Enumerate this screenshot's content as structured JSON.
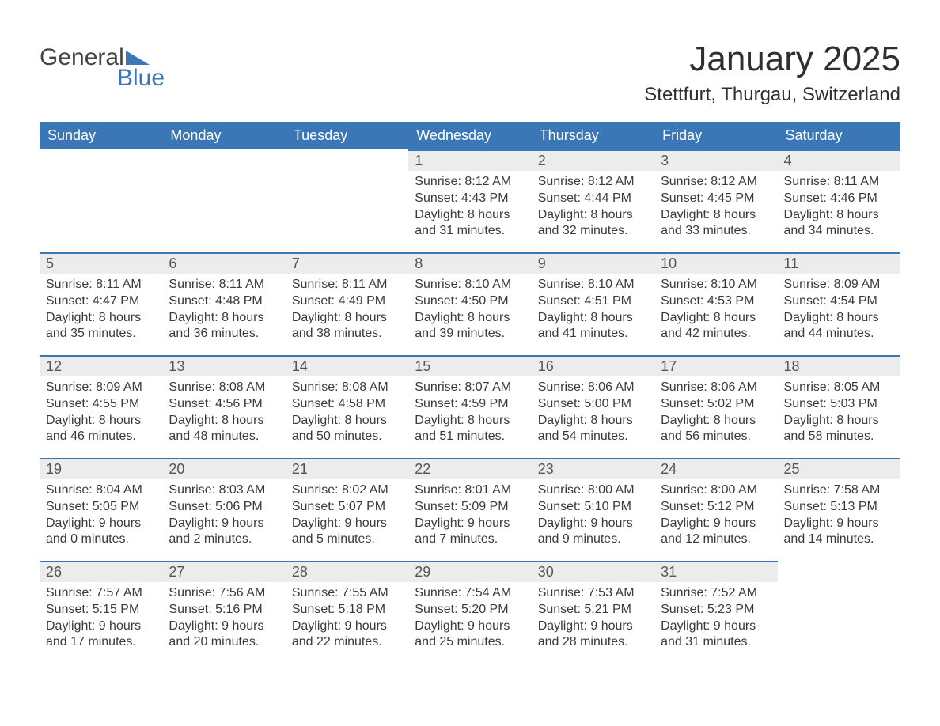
{
  "logo": {
    "general": "General",
    "blue": "Blue"
  },
  "title": "January 2025",
  "subtitle": "Stettfurt, Thurgau, Switzerland",
  "colors": {
    "header_bg": "#3b77b7",
    "header_text": "#ffffff",
    "daynum_bg": "#ececec",
    "daynum_border": "#3b77b7",
    "body_text": "#3a3a3a",
    "logo_general": "#454545",
    "logo_blue": "#3b77b7",
    "page_bg": "#ffffff"
  },
  "typography": {
    "title_fontsize": 44,
    "subtitle_fontsize": 24,
    "header_fontsize": 18,
    "daynum_fontsize": 18,
    "body_fontsize": 16,
    "logo_fontsize": 30
  },
  "weekdays": [
    "Sunday",
    "Monday",
    "Tuesday",
    "Wednesday",
    "Thursday",
    "Friday",
    "Saturday"
  ],
  "weeks": [
    [
      null,
      null,
      null,
      {
        "day": "1",
        "sunrise": "Sunrise: 8:12 AM",
        "sunset": "Sunset: 4:43 PM",
        "daylight1": "Daylight: 8 hours",
        "daylight2": "and 31 minutes."
      },
      {
        "day": "2",
        "sunrise": "Sunrise: 8:12 AM",
        "sunset": "Sunset: 4:44 PM",
        "daylight1": "Daylight: 8 hours",
        "daylight2": "and 32 minutes."
      },
      {
        "day": "3",
        "sunrise": "Sunrise: 8:12 AM",
        "sunset": "Sunset: 4:45 PM",
        "daylight1": "Daylight: 8 hours",
        "daylight2": "and 33 minutes."
      },
      {
        "day": "4",
        "sunrise": "Sunrise: 8:11 AM",
        "sunset": "Sunset: 4:46 PM",
        "daylight1": "Daylight: 8 hours",
        "daylight2": "and 34 minutes."
      }
    ],
    [
      {
        "day": "5",
        "sunrise": "Sunrise: 8:11 AM",
        "sunset": "Sunset: 4:47 PM",
        "daylight1": "Daylight: 8 hours",
        "daylight2": "and 35 minutes."
      },
      {
        "day": "6",
        "sunrise": "Sunrise: 8:11 AM",
        "sunset": "Sunset: 4:48 PM",
        "daylight1": "Daylight: 8 hours",
        "daylight2": "and 36 minutes."
      },
      {
        "day": "7",
        "sunrise": "Sunrise: 8:11 AM",
        "sunset": "Sunset: 4:49 PM",
        "daylight1": "Daylight: 8 hours",
        "daylight2": "and 38 minutes."
      },
      {
        "day": "8",
        "sunrise": "Sunrise: 8:10 AM",
        "sunset": "Sunset: 4:50 PM",
        "daylight1": "Daylight: 8 hours",
        "daylight2": "and 39 minutes."
      },
      {
        "day": "9",
        "sunrise": "Sunrise: 8:10 AM",
        "sunset": "Sunset: 4:51 PM",
        "daylight1": "Daylight: 8 hours",
        "daylight2": "and 41 minutes."
      },
      {
        "day": "10",
        "sunrise": "Sunrise: 8:10 AM",
        "sunset": "Sunset: 4:53 PM",
        "daylight1": "Daylight: 8 hours",
        "daylight2": "and 42 minutes."
      },
      {
        "day": "11",
        "sunrise": "Sunrise: 8:09 AM",
        "sunset": "Sunset: 4:54 PM",
        "daylight1": "Daylight: 8 hours",
        "daylight2": "and 44 minutes."
      }
    ],
    [
      {
        "day": "12",
        "sunrise": "Sunrise: 8:09 AM",
        "sunset": "Sunset: 4:55 PM",
        "daylight1": "Daylight: 8 hours",
        "daylight2": "and 46 minutes."
      },
      {
        "day": "13",
        "sunrise": "Sunrise: 8:08 AM",
        "sunset": "Sunset: 4:56 PM",
        "daylight1": "Daylight: 8 hours",
        "daylight2": "and 48 minutes."
      },
      {
        "day": "14",
        "sunrise": "Sunrise: 8:08 AM",
        "sunset": "Sunset: 4:58 PM",
        "daylight1": "Daylight: 8 hours",
        "daylight2": "and 50 minutes."
      },
      {
        "day": "15",
        "sunrise": "Sunrise: 8:07 AM",
        "sunset": "Sunset: 4:59 PM",
        "daylight1": "Daylight: 8 hours",
        "daylight2": "and 51 minutes."
      },
      {
        "day": "16",
        "sunrise": "Sunrise: 8:06 AM",
        "sunset": "Sunset: 5:00 PM",
        "daylight1": "Daylight: 8 hours",
        "daylight2": "and 54 minutes."
      },
      {
        "day": "17",
        "sunrise": "Sunrise: 8:06 AM",
        "sunset": "Sunset: 5:02 PM",
        "daylight1": "Daylight: 8 hours",
        "daylight2": "and 56 minutes."
      },
      {
        "day": "18",
        "sunrise": "Sunrise: 8:05 AM",
        "sunset": "Sunset: 5:03 PM",
        "daylight1": "Daylight: 8 hours",
        "daylight2": "and 58 minutes."
      }
    ],
    [
      {
        "day": "19",
        "sunrise": "Sunrise: 8:04 AM",
        "sunset": "Sunset: 5:05 PM",
        "daylight1": "Daylight: 9 hours",
        "daylight2": "and 0 minutes."
      },
      {
        "day": "20",
        "sunrise": "Sunrise: 8:03 AM",
        "sunset": "Sunset: 5:06 PM",
        "daylight1": "Daylight: 9 hours",
        "daylight2": "and 2 minutes."
      },
      {
        "day": "21",
        "sunrise": "Sunrise: 8:02 AM",
        "sunset": "Sunset: 5:07 PM",
        "daylight1": "Daylight: 9 hours",
        "daylight2": "and 5 minutes."
      },
      {
        "day": "22",
        "sunrise": "Sunrise: 8:01 AM",
        "sunset": "Sunset: 5:09 PM",
        "daylight1": "Daylight: 9 hours",
        "daylight2": "and 7 minutes."
      },
      {
        "day": "23",
        "sunrise": "Sunrise: 8:00 AM",
        "sunset": "Sunset: 5:10 PM",
        "daylight1": "Daylight: 9 hours",
        "daylight2": "and 9 minutes."
      },
      {
        "day": "24",
        "sunrise": "Sunrise: 8:00 AM",
        "sunset": "Sunset: 5:12 PM",
        "daylight1": "Daylight: 9 hours",
        "daylight2": "and 12 minutes."
      },
      {
        "day": "25",
        "sunrise": "Sunrise: 7:58 AM",
        "sunset": "Sunset: 5:13 PM",
        "daylight1": "Daylight: 9 hours",
        "daylight2": "and 14 minutes."
      }
    ],
    [
      {
        "day": "26",
        "sunrise": "Sunrise: 7:57 AM",
        "sunset": "Sunset: 5:15 PM",
        "daylight1": "Daylight: 9 hours",
        "daylight2": "and 17 minutes."
      },
      {
        "day": "27",
        "sunrise": "Sunrise: 7:56 AM",
        "sunset": "Sunset: 5:16 PM",
        "daylight1": "Daylight: 9 hours",
        "daylight2": "and 20 minutes."
      },
      {
        "day": "28",
        "sunrise": "Sunrise: 7:55 AM",
        "sunset": "Sunset: 5:18 PM",
        "daylight1": "Daylight: 9 hours",
        "daylight2": "and 22 minutes."
      },
      {
        "day": "29",
        "sunrise": "Sunrise: 7:54 AM",
        "sunset": "Sunset: 5:20 PM",
        "daylight1": "Daylight: 9 hours",
        "daylight2": "and 25 minutes."
      },
      {
        "day": "30",
        "sunrise": "Sunrise: 7:53 AM",
        "sunset": "Sunset: 5:21 PM",
        "daylight1": "Daylight: 9 hours",
        "daylight2": "and 28 minutes."
      },
      {
        "day": "31",
        "sunrise": "Sunrise: 7:52 AM",
        "sunset": "Sunset: 5:23 PM",
        "daylight1": "Daylight: 9 hours",
        "daylight2": "and 31 minutes."
      },
      null
    ]
  ]
}
